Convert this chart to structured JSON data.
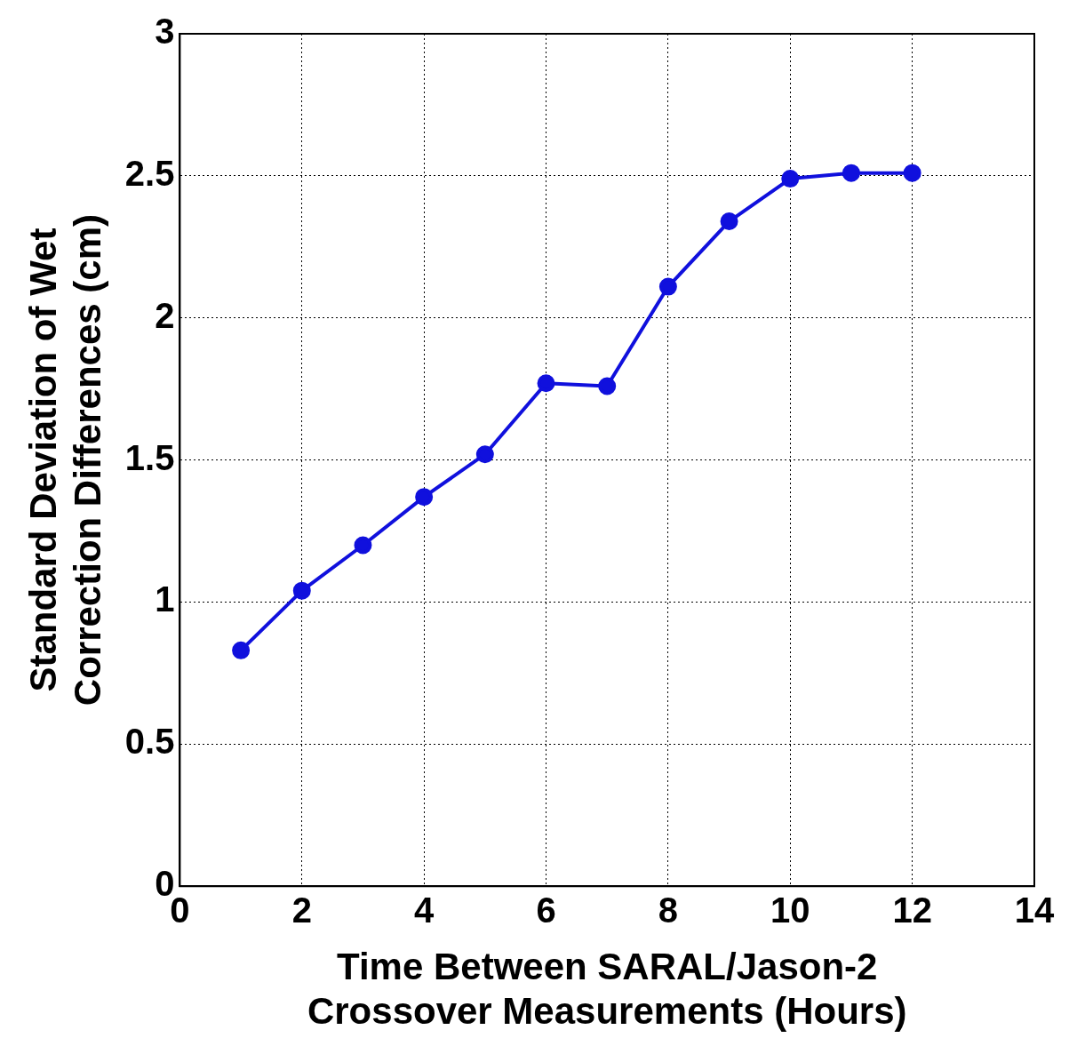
{
  "chart_data": {
    "type": "line",
    "xlabel": "Time Between SARAL/Jason-2\nCrossover Measurements (Hours)",
    "ylabel": "Standard Deviation of Wet\nCorrection Differences (cm)",
    "x": [
      1,
      2,
      3,
      4,
      5,
      6,
      7,
      8,
      9,
      10,
      11,
      12
    ],
    "series": [
      {
        "color": "#1010dd",
        "values": [
          0.83,
          1.04,
          1.2,
          1.37,
          1.52,
          1.77,
          1.76,
          2.11,
          2.34,
          2.49,
          2.51,
          2.51
        ]
      }
    ],
    "xlim": [
      0,
      14
    ],
    "xticks": [
      0,
      2,
      4,
      6,
      8,
      10,
      12,
      14
    ],
    "ylim": [
      0,
      3
    ],
    "yticks": [
      0,
      0.5,
      1,
      1.5,
      2,
      2.5,
      3
    ],
    "grid": true,
    "marker": "circle",
    "line_style": "solid"
  }
}
